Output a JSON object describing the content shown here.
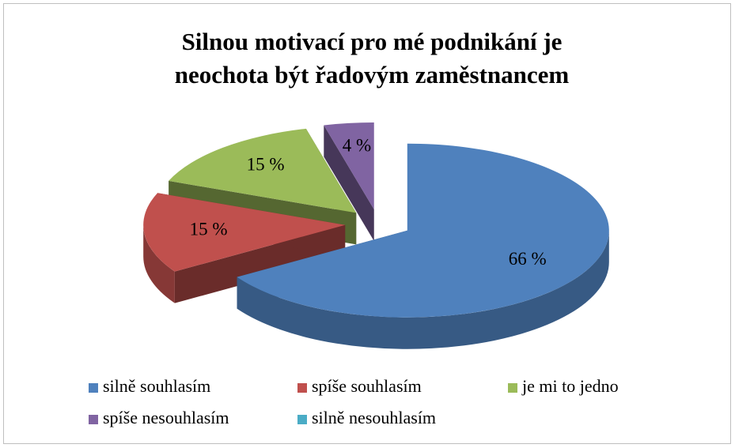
{
  "chart_data": {
    "type": "pie3d",
    "title": [
      "Silnou motivací pro mé podnikání je",
      "neochota být řadovým zaměstnancem"
    ],
    "categories": [
      "silně souhlasím",
      "spíše souhlasím",
      "je mi to jedno",
      "spíše nesouhlasím",
      "silně nesouhlasím"
    ],
    "series": [
      {
        "name": "odpovědi",
        "colors": [
          "#4f81bd",
          "#c0504d",
          "#9bbb59",
          "#8064a2",
          "#4bacc6"
        ],
        "values": [
          66,
          15,
          15,
          4,
          0
        ],
        "value_labels": [
          "66 %",
          "15 %",
          "15 %",
          "4 %",
          null
        ]
      }
    ],
    "legend": "bottom"
  }
}
